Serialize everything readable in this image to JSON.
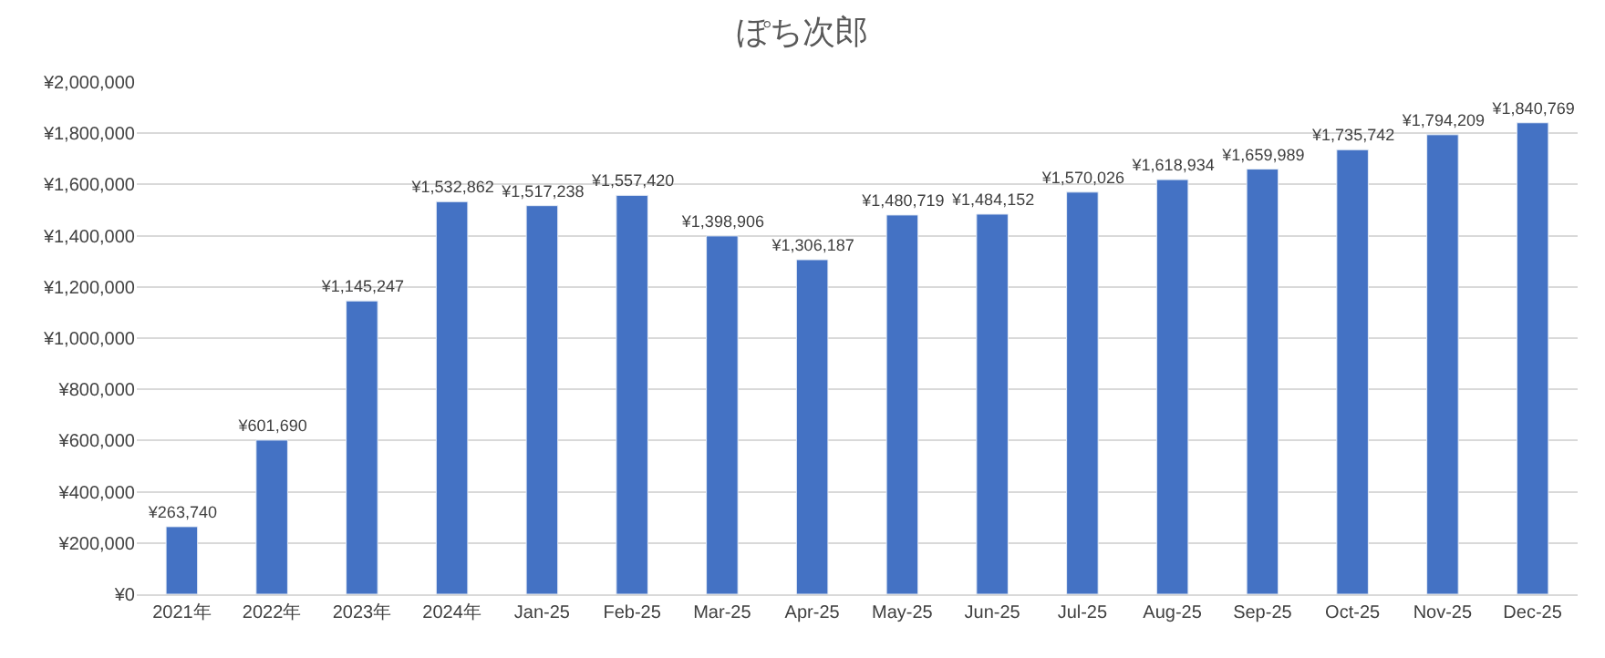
{
  "chart_data": {
    "type": "bar",
    "title": "ぽち次郎",
    "categories": [
      "2021年",
      "2022年",
      "2023年",
      "2024年",
      "Jan-25",
      "Feb-25",
      "Mar-25",
      "Apr-25",
      "May-25",
      "Jun-25",
      "Jul-25",
      "Aug-25",
      "Sep-25",
      "Oct-25",
      "Nov-25",
      "Dec-25"
    ],
    "values": [
      263740,
      601690,
      1145247,
      1532862,
      1517238,
      1557420,
      1398906,
      1306187,
      1480719,
      1484152,
      1570026,
      1618934,
      1659989,
      1735742,
      1794209,
      1840769
    ],
    "value_labels": [
      "¥263,740",
      "¥601,690",
      "¥1,145,247",
      "¥1,532,862",
      "¥1,517,238",
      "¥1,557,420",
      "¥1,398,906",
      "¥1,306,187",
      "¥1,480,719",
      "¥1,484,152",
      "¥1,570,026",
      "¥1,618,934",
      "¥1,659,989",
      "¥1,735,742",
      "¥1,794,209",
      "¥1,840,769"
    ],
    "color": "#4472c4",
    "ylim": [
      0,
      2000000
    ],
    "yticks": [
      {
        "value": 0,
        "label": "¥0"
      },
      {
        "value": 200000,
        "label": "¥200,000"
      },
      {
        "value": 400000,
        "label": "¥400,000"
      },
      {
        "value": 600000,
        "label": "¥600,000"
      },
      {
        "value": 800000,
        "label": "¥800,000"
      },
      {
        "value": 1000000,
        "label": "¥1,000,000"
      },
      {
        "value": 1200000,
        "label": "¥1,200,000"
      },
      {
        "value": 1400000,
        "label": "¥1,400,000"
      },
      {
        "value": 1600000,
        "label": "¥1,600,000"
      },
      {
        "value": 1800000,
        "label": "¥1,800,000"
      },
      {
        "value": 2000000,
        "label": "¥2,000,000"
      }
    ],
    "grid": "y"
  }
}
